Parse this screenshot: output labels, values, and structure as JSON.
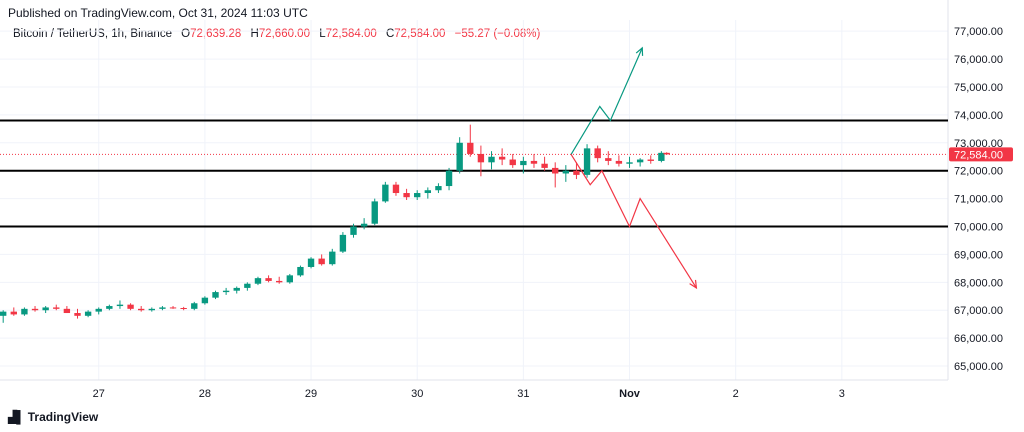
{
  "header": {
    "published": "Published on TradingView.com, Oct 31, 2024 11:03 UTC"
  },
  "legend": {
    "symbol": "Bitcoin / TetherUS, 1h, Binance",
    "o_label": "O",
    "o_value": "72,639.28",
    "h_label": "H",
    "h_value": "72,660.00",
    "l_label": "L",
    "l_value": "72,584.00",
    "c_label": "C",
    "c_value": "72,584.00",
    "change": "−55.27 (−0.08%)"
  },
  "logo": {
    "text": "TradingView",
    "icon": "tradingview-logo-icon"
  },
  "colors": {
    "up": "#089981",
    "down": "#f23645",
    "grid": "#f0f3fa",
    "line": "#000000",
    "price_tag": "#f23645"
  },
  "chart_data": {
    "type": "candlestick",
    "title": "Bitcoin / TetherUS, 1h, Binance",
    "ylim": [
      64500,
      77400
    ],
    "y_ticks": [
      65000,
      66000,
      67000,
      68000,
      69000,
      70000,
      71000,
      72000,
      73000,
      74000,
      75000,
      76000,
      77000
    ],
    "y_tick_labels": [
      "65,000.00",
      "66,000.00",
      "67,000.00",
      "68,000.00",
      "69,000.00",
      "70,000.00",
      "71,000.00",
      "72,000.00",
      "73,000.00",
      "74,000.00",
      "75,000.00",
      "76,000.00",
      "77,000.00"
    ],
    "x_range_days": [
      26.07,
      35.0
    ],
    "x_ticks": [
      {
        "day": 27,
        "label": "27",
        "bold": false
      },
      {
        "day": 28,
        "label": "28",
        "bold": false
      },
      {
        "day": 29,
        "label": "29",
        "bold": false
      },
      {
        "day": 30,
        "label": "30",
        "bold": false
      },
      {
        "day": 31,
        "label": "31",
        "bold": false
      },
      {
        "day": 32,
        "label": "Nov",
        "bold": true
      },
      {
        "day": 33,
        "label": "2",
        "bold": false
      },
      {
        "day": 34,
        "label": "3",
        "bold": false
      }
    ],
    "grid": true,
    "last_price": 72584,
    "last_price_label": "72,584.00",
    "horizontal_levels": [
      73800,
      72000,
      70000
    ],
    "bullish_path": {
      "color": "#089981",
      "points": [
        [
          31.45,
          72584
        ],
        [
          31.72,
          74300
        ],
        [
          31.82,
          73800
        ],
        [
          32.12,
          76400
        ]
      ]
    },
    "bearish_path": {
      "color": "#f23645",
      "points": [
        [
          31.45,
          72584
        ],
        [
          31.63,
          71500
        ],
        [
          31.74,
          72000
        ],
        [
          32.0,
          70000
        ],
        [
          32.1,
          71000
        ],
        [
          32.63,
          67800
        ]
      ]
    },
    "candles": [
      [
        26.1,
        66800,
        67000,
        66550,
        66950
      ],
      [
        26.2,
        66950,
        67100,
        66800,
        66850
      ],
      [
        26.3,
        66850,
        67100,
        66800,
        67050
      ],
      [
        26.4,
        67050,
        67150,
        66950,
        67000
      ],
      [
        26.5,
        67000,
        67150,
        66900,
        67100
      ],
      [
        26.6,
        67100,
        67200,
        67000,
        67050
      ],
      [
        26.7,
        67050,
        67150,
        66900,
        66900
      ],
      [
        26.8,
        66900,
        67050,
        66700,
        66800
      ],
      [
        26.9,
        66800,
        67000,
        66750,
        66950
      ],
      [
        27.0,
        66950,
        67100,
        66850,
        67050
      ],
      [
        27.1,
        67050,
        67200,
        67000,
        67150
      ],
      [
        27.2,
        67150,
        67350,
        67050,
        67200
      ],
      [
        27.3,
        67200,
        67250,
        67000,
        67050
      ],
      [
        27.4,
        67050,
        67150,
        66950,
        67000
      ],
      [
        27.5,
        67000,
        67100,
        66950,
        67050
      ],
      [
        27.6,
        67050,
        67150,
        67000,
        67100
      ],
      [
        27.7,
        67100,
        67150,
        67050,
        67080
      ],
      [
        27.8,
        67080,
        67120,
        67000,
        67050
      ],
      [
        27.9,
        67050,
        67300,
        67000,
        67250
      ],
      [
        28.0,
        67250,
        67500,
        67200,
        67450
      ],
      [
        28.1,
        67450,
        67700,
        67400,
        67650
      ],
      [
        28.2,
        67650,
        67800,
        67550,
        67700
      ],
      [
        28.3,
        67700,
        67850,
        67600,
        67800
      ],
      [
        28.4,
        67800,
        68000,
        67700,
        67950
      ],
      [
        28.5,
        67950,
        68200,
        67900,
        68150
      ],
      [
        28.6,
        68150,
        68250,
        68000,
        68050
      ],
      [
        28.7,
        68050,
        68200,
        67950,
        68000
      ],
      [
        28.8,
        68000,
        68300,
        67950,
        68250
      ],
      [
        28.9,
        68250,
        68600,
        68200,
        68550
      ],
      [
        29.0,
        68550,
        68900,
        68500,
        68850
      ],
      [
        29.1,
        68850,
        69000,
        68600,
        68650
      ],
      [
        29.2,
        68650,
        69200,
        68600,
        69100
      ],
      [
        29.3,
        69100,
        69800,
        69050,
        69700
      ],
      [
        29.4,
        69700,
        70100,
        69600,
        70000
      ],
      [
        29.5,
        70000,
        70300,
        69900,
        70100
      ],
      [
        29.6,
        70100,
        71000,
        70050,
        70900
      ],
      [
        29.7,
        70900,
        71600,
        70850,
        71500
      ],
      [
        29.8,
        71500,
        71600,
        71100,
        71200
      ],
      [
        29.9,
        71200,
        71350,
        70950,
        71050
      ],
      [
        30.0,
        71050,
        71300,
        70950,
        71200
      ],
      [
        30.1,
        71200,
        71400,
        71000,
        71300
      ],
      [
        30.2,
        71300,
        71550,
        71200,
        71450
      ],
      [
        30.3,
        71450,
        72100,
        71300,
        72000
      ],
      [
        30.4,
        72000,
        73200,
        71900,
        73000
      ],
      [
        30.5,
        73000,
        73650,
        72500,
        72600
      ],
      [
        30.6,
        72600,
        72900,
        71800,
        72300
      ],
      [
        30.7,
        72300,
        72700,
        72050,
        72500
      ],
      [
        30.8,
        72500,
        72800,
        72200,
        72400
      ],
      [
        30.9,
        72400,
        72600,
        72100,
        72200
      ],
      [
        31.0,
        72200,
        72500,
        71900,
        72350
      ],
      [
        31.1,
        72350,
        72600,
        72100,
        72250
      ],
      [
        31.2,
        72250,
        72500,
        72000,
        72100
      ],
      [
        31.3,
        72100,
        72300,
        71400,
        71900
      ],
      [
        31.4,
        71900,
        72200,
        71600,
        72000
      ],
      [
        31.5,
        72000,
        72300,
        71700,
        71850
      ],
      [
        31.6,
        71850,
        72950,
        71750,
        72800
      ],
      [
        31.7,
        72800,
        72900,
        72300,
        72450
      ],
      [
        31.8,
        72450,
        72700,
        72200,
        72350
      ],
      [
        31.9,
        72350,
        72550,
        72150,
        72250
      ],
      [
        32.0,
        72250,
        72500,
        72100,
        72300
      ],
      [
        32.1,
        72300,
        72450,
        72150,
        72400
      ],
      [
        32.2,
        72400,
        72550,
        72250,
        72350
      ],
      [
        32.3,
        72350,
        72700,
        72300,
        72640
      ],
      [
        32.35,
        72640,
        72660,
        72584,
        72584
      ]
    ]
  }
}
